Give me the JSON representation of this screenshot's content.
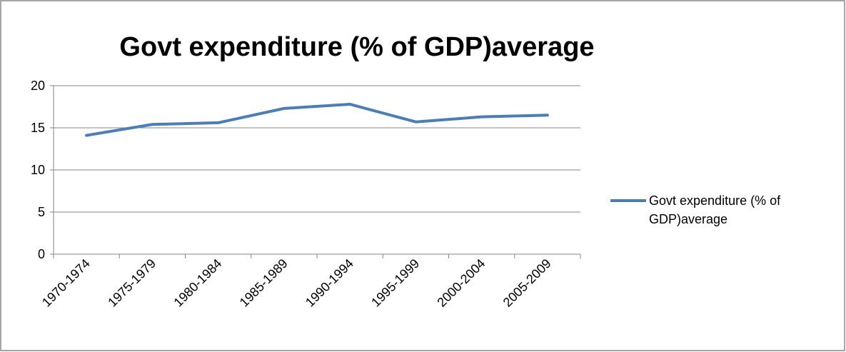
{
  "chart_data": {
    "type": "line",
    "title": "Govt expenditure (% of GDP)average",
    "categories": [
      "1970-1974",
      "1975-1979",
      "1980-1984",
      "1985-1989",
      "1990-1994",
      "1995-1999",
      "2000-2004",
      "2005-2009"
    ],
    "series": [
      {
        "name": "Govt expenditure (% of GDP)average",
        "color": "#4a7ebb",
        "values": [
          14.1,
          15.4,
          15.6,
          17.3,
          17.8,
          15.7,
          16.3,
          16.5
        ]
      }
    ],
    "ylim": [
      0,
      20
    ],
    "yticks": [
      0,
      5,
      10,
      15,
      20
    ],
    "grid": true,
    "legend": "right"
  }
}
